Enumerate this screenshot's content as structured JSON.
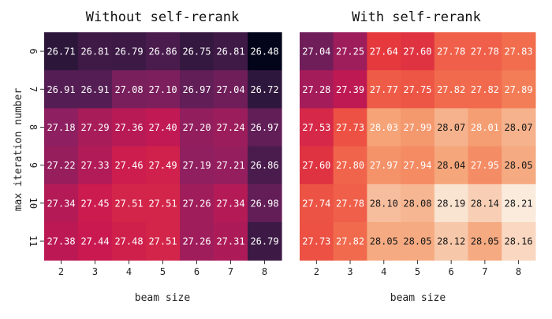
{
  "chart_data": [
    {
      "type": "heatmap",
      "title": "Without self-rerank",
      "xlabel": "beam size",
      "ylabel": "max iteration number",
      "x_categories": [
        "2",
        "3",
        "4",
        "5",
        "6",
        "7",
        "8"
      ],
      "y_categories": [
        "6",
        "7",
        "8",
        "9",
        "10",
        "11"
      ],
      "values": [
        [
          "26.71",
          "26.81",
          "26.79",
          "26.86",
          "26.75",
          "26.81",
          "26.48"
        ],
        [
          "26.91",
          "26.91",
          "27.08",
          "27.10",
          "26.97",
          "27.04",
          "26.72"
        ],
        [
          "27.18",
          "27.29",
          "27.36",
          "27.40",
          "27.20",
          "27.24",
          "26.97"
        ],
        [
          "27.22",
          "27.33",
          "27.46",
          "27.49",
          "27.19",
          "27.21",
          "26.86"
        ],
        [
          "27.34",
          "27.45",
          "27.51",
          "27.51",
          "27.26",
          "27.34",
          "26.98"
        ],
        [
          "27.38",
          "27.44",
          "27.48",
          "27.51",
          "27.26",
          "27.31",
          "26.79"
        ]
      ],
      "colormap": "rocket",
      "color_range": [
        26.48,
        28.21
      ]
    },
    {
      "type": "heatmap",
      "title": "With self-rerank",
      "xlabel": "beam size",
      "ylabel": "",
      "x_categories": [
        "2",
        "3",
        "4",
        "5",
        "6",
        "7",
        "8"
      ],
      "y_categories": [
        "6",
        "7",
        "8",
        "9",
        "10",
        "11"
      ],
      "values": [
        [
          "27.04",
          "27.25",
          "27.64",
          "27.60",
          "27.78",
          "27.78",
          "27.83"
        ],
        [
          "27.28",
          "27.39",
          "27.77",
          "27.75",
          "27.82",
          "27.82",
          "27.89"
        ],
        [
          "27.53",
          "27.73",
          "28.03",
          "27.99",
          "28.07",
          "28.01",
          "28.07"
        ],
        [
          "27.60",
          "27.80",
          "27.97",
          "27.94",
          "28.04",
          "27.95",
          "28.05"
        ],
        [
          "27.74",
          "27.78",
          "28.10",
          "28.08",
          "28.19",
          "28.14",
          "28.21"
        ],
        [
          "27.73",
          "27.82",
          "28.05",
          "28.05",
          "28.12",
          "28.05",
          "28.16"
        ]
      ],
      "colormap": "rocket",
      "color_range": [
        26.48,
        28.21
      ]
    }
  ]
}
